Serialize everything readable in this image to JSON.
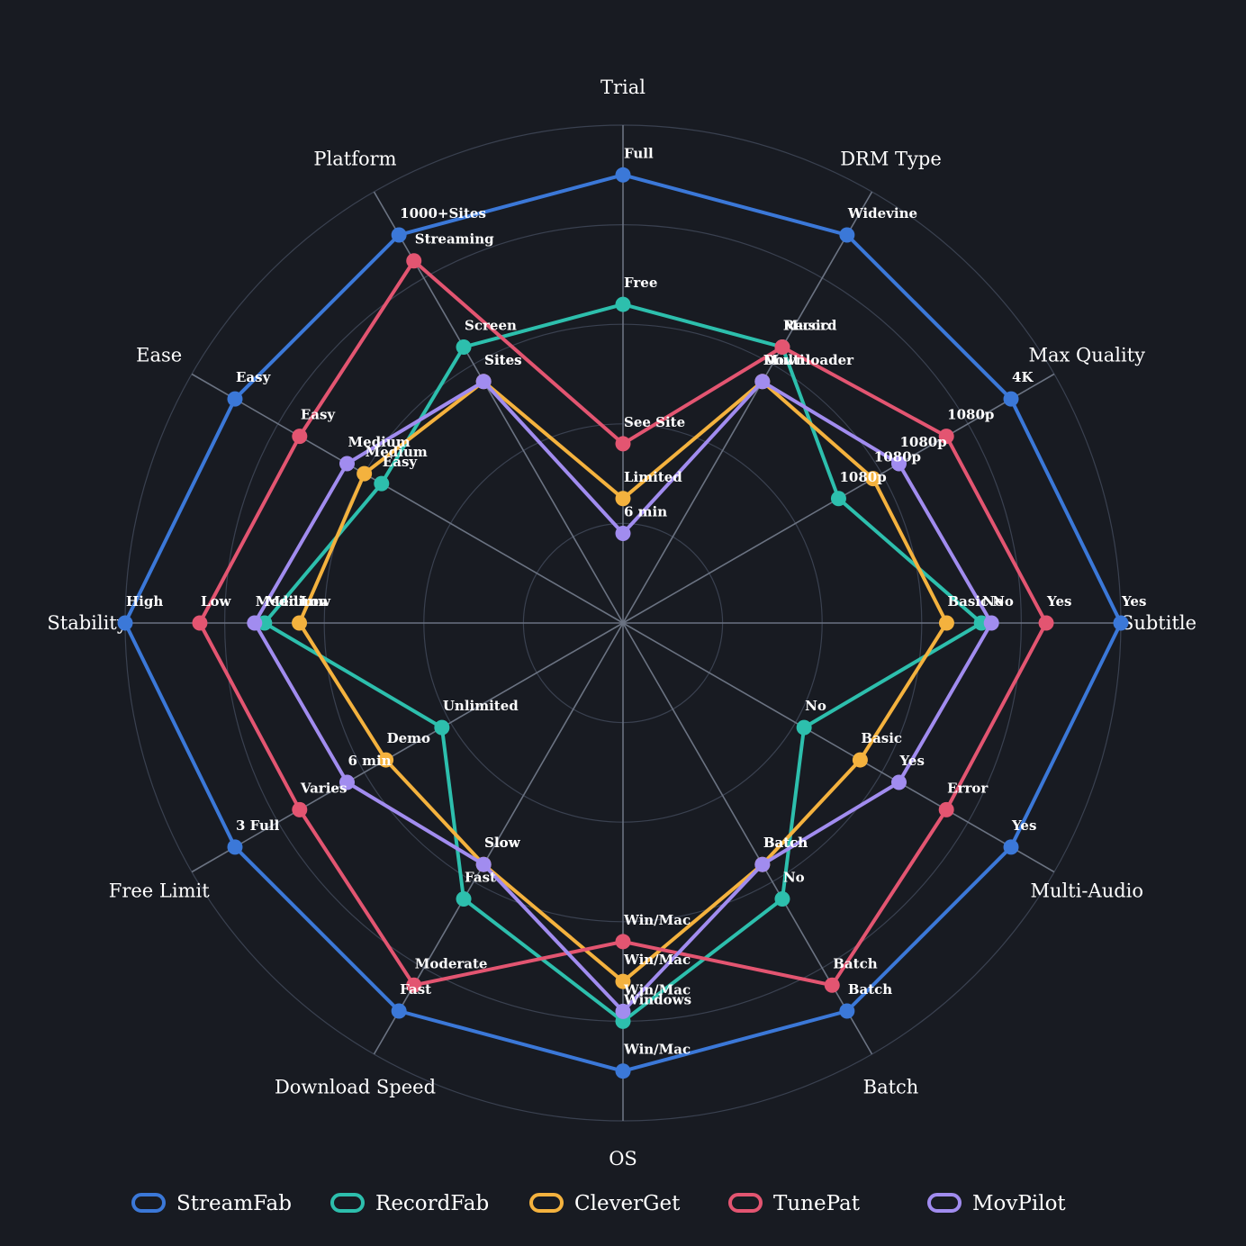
{
  "chart_data": {
    "type": "radar",
    "title": "",
    "axes": [
      "Trial",
      "DRM Type",
      "Max Quality",
      "Subtitle",
      "Multi-Audio",
      "Batch",
      "OS",
      "Download Speed",
      "Free Limit",
      "Stability",
      "Ease",
      "Platform"
    ],
    "scale": [
      0,
      5
    ],
    "grid_rings": [
      1,
      2,
      3,
      4,
      5
    ],
    "grid": true,
    "legend_position": "bottom",
    "series": [
      {
        "name": "StreamFab",
        "color": "#3b78d8",
        "values": [
          4.5,
          4.5,
          4.5,
          5,
          4.5,
          4.5,
          4.5,
          4.5,
          4.5,
          5,
          4.5,
          4.5
        ],
        "labels": [
          "Full",
          "Widevine",
          "4K",
          "Yes",
          "Yes",
          "Batch",
          "Win/Mac",
          "Fast",
          "3 Full",
          "High",
          "Easy",
          "1000+Sites"
        ]
      },
      {
        "name": "RecordFab",
        "color": "#2dbfad",
        "values": [
          3.2,
          3.2,
          2.5,
          3.6,
          2.1,
          3.2,
          4,
          3.2,
          2.1,
          3.6,
          2.8,
          3.2
        ],
        "labels": [
          "Free",
          "Record",
          "1080p",
          "No",
          "No",
          "No",
          "Windows",
          "Fast",
          "Unlimited",
          "Medium",
          "Easy",
          "Screen"
        ]
      },
      {
        "name": "CleverGet",
        "color": "#f4b23e",
        "values": [
          1.25,
          2.8,
          2.9,
          3.25,
          2.75,
          2.8,
          3.6,
          2.8,
          2.75,
          3.25,
          3.0,
          2.8
        ],
        "labels": [
          "Limited",
          "Downloader",
          "1080p",
          "Basic",
          "Basic",
          "Batch",
          "Win/Mac",
          "Slow",
          "Demo",
          "Low",
          "Medium",
          "Sites"
        ]
      },
      {
        "name": "TunePat",
        "color": "#e35571",
        "values": [
          1.8,
          3.2,
          3.75,
          4.25,
          3.75,
          4.2,
          3.2,
          4.2,
          3.75,
          4.25,
          3.75,
          4.2
        ],
        "labels": [
          "See Site",
          "Music",
          "1080p",
          "Yes",
          "Error",
          "Batch",
          "Win/Mac",
          "Moderate",
          "Varies",
          "Low",
          "Easy",
          "Streaming"
        ]
      },
      {
        "name": "MovPilot",
        "color": "#a18cef",
        "values": [
          0.9,
          2.8,
          3.2,
          3.7,
          3.2,
          2.8,
          3.9,
          2.8,
          3.2,
          3.7,
          3.2,
          2.8
        ],
        "labels": [
          "6 min",
          "Multi",
          "1080p",
          "No",
          "Yes",
          "Batch",
          "Win/Mac",
          "Slow",
          "6 min",
          "Medium",
          "Medium",
          "Sites"
        ]
      }
    ]
  }
}
